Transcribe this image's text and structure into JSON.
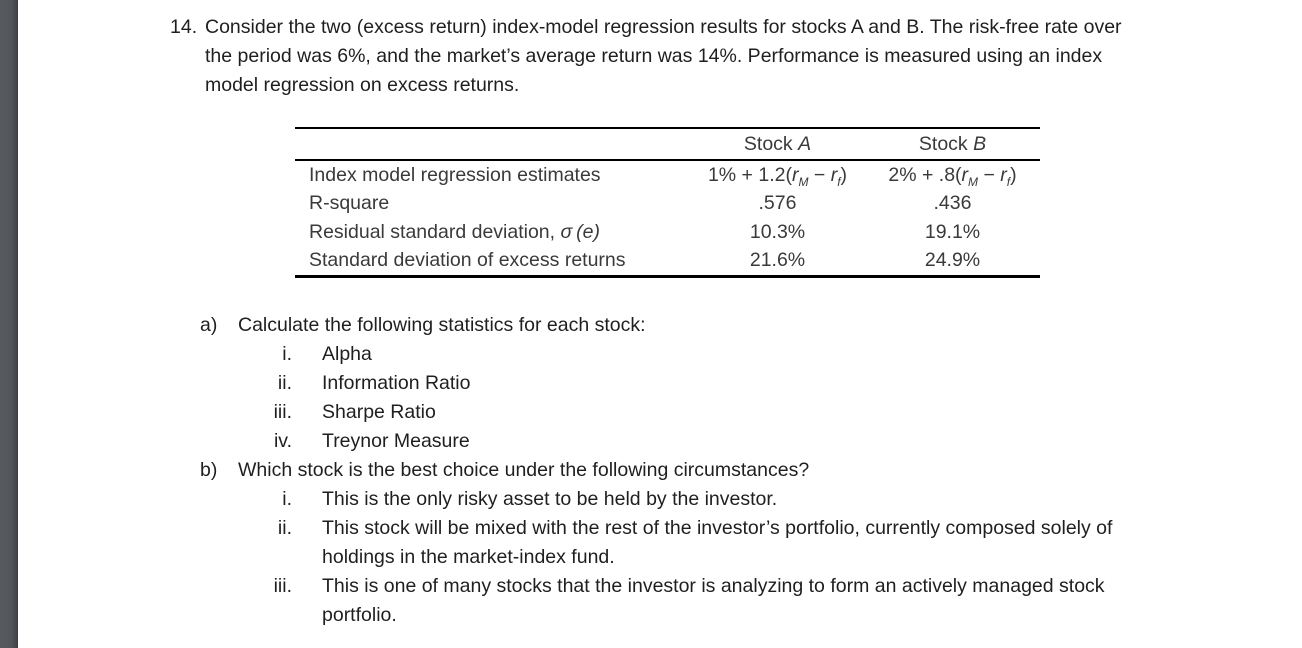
{
  "problem": {
    "number": "14.",
    "text": "Consider the two (excess return) index-model regression results for stocks A and B. The risk-free rate over the period was 6%, and the market’s average return was 14%. Performance is measured using an index model regression on excess returns."
  },
  "table": {
    "headers": {
      "stock_a_label": "Stock ",
      "stock_a_symbol": "A",
      "stock_b_label": "Stock ",
      "stock_b_symbol": "B"
    },
    "row_labels": {
      "regression": "Index model regression estimates",
      "r_square": "R-square",
      "residual_sd_pre": "Residual standard deviation, ",
      "residual_sd_sigma": "σ",
      "residual_sd_e": " (e)",
      "sd_excess": "Standard deviation of excess returns"
    },
    "formula_a": {
      "pre": "1% + 1.2(",
      "r1": "r",
      "sub1": "M",
      "minus": " − ",
      "r2": "r",
      "sub2": "f",
      "post": ")"
    },
    "formula_b": {
      "pre": "2% + .8(",
      "r1": "r",
      "sub1": "M",
      "minus": " − ",
      "r2": "r",
      "sub2": "f",
      "post": ")"
    },
    "values": {
      "r_square_a": ".576",
      "r_square_b": ".436",
      "residual_sd_a": "10.3%",
      "residual_sd_b": "19.1%",
      "sd_excess_a": "21.6%",
      "sd_excess_b": "24.9%"
    }
  },
  "question_a": {
    "marker": "a)",
    "text": "Calculate the following statistics for each stock:",
    "items": [
      {
        "marker": "i.",
        "text": "Alpha"
      },
      {
        "marker": "ii.",
        "text": "Information Ratio"
      },
      {
        "marker": "iii.",
        "text": "Sharpe Ratio"
      },
      {
        "marker": "iv.",
        "text": "Treynor Measure"
      }
    ]
  },
  "question_b": {
    "marker": "b)",
    "text": "Which stock is the best choice under the following circumstances?",
    "items": [
      {
        "marker": "i.",
        "text": "This is the only risky asset to be held by the investor."
      },
      {
        "marker": "ii.",
        "text": "This stock will be mixed with the rest of the investor’s portfolio, currently composed solely of holdings in the market-index fund."
      },
      {
        "marker": "iii.",
        "text": "This is one of many stocks that the investor is analyzing to form an actively managed stock portfolio."
      }
    ]
  }
}
